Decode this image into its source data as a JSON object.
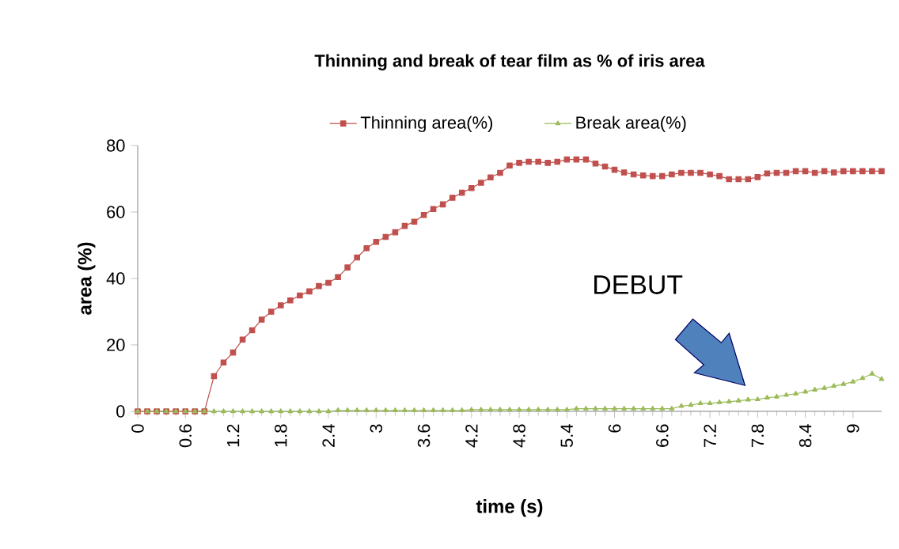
{
  "chart_data": {
    "type": "line",
    "title": "Thinning and break of tear film as % of iris area",
    "xlabel": "time (s)",
    "ylabel": "area (%)",
    "x": [
      0,
      0.12,
      0.24,
      0.36,
      0.48,
      0.6,
      0.72,
      0.84,
      0.96,
      1.08,
      1.2,
      1.32,
      1.44,
      1.56,
      1.68,
      1.8,
      1.92,
      2.04,
      2.16,
      2.28,
      2.4,
      2.52,
      2.64,
      2.76,
      2.88,
      3,
      3.12,
      3.24,
      3.36,
      3.48,
      3.6,
      3.72,
      3.84,
      3.96,
      4.08,
      4.2,
      4.32,
      4.44,
      4.56,
      4.68,
      4.8,
      4.92,
      5.04,
      5.16,
      5.28,
      5.4,
      5.52,
      5.64,
      5.76,
      5.88,
      6,
      6.12,
      6.24,
      6.36,
      6.48,
      6.6,
      6.72,
      6.84,
      6.96,
      7.08,
      7.2,
      7.32,
      7.44,
      7.56,
      7.68,
      7.8,
      7.92,
      8.04,
      8.16,
      8.28,
      8.4,
      8.52,
      8.64,
      8.76,
      8.88,
      9,
      9.12,
      9.24,
      9.36
    ],
    "series": [
      {
        "name": "Thinning area(%)",
        "color": "#c0504d",
        "marker": "square",
        "values": [
          0,
          0,
          0,
          0,
          0,
          0,
          0,
          0,
          10.6,
          14.7,
          17.7,
          21.6,
          24.4,
          27.6,
          30.0,
          31.9,
          33.4,
          34.9,
          36.1,
          37.7,
          38.7,
          40.4,
          43.3,
          46.3,
          49.1,
          51.0,
          52.5,
          53.9,
          55.8,
          57.1,
          59.1,
          60.9,
          62.3,
          64.3,
          65.8,
          67.2,
          68.8,
          70.4,
          71.8,
          74.0,
          74.8,
          75.1,
          75.1,
          74.8,
          75.1,
          75.8,
          75.8,
          75.8,
          74.6,
          73.7,
          72.7,
          71.9,
          71.3,
          71.0,
          70.8,
          70.8,
          71.3,
          71.8,
          71.8,
          71.8,
          71.3,
          70.8,
          69.9,
          69.9,
          69.9,
          70.5,
          71.6,
          71.8,
          71.8,
          72.3,
          72.3,
          71.8,
          72.3,
          71.9,
          72.3,
          72.3,
          72.3,
          72.3,
          72.3
        ]
      },
      {
        "name": "Break area(%)",
        "color": "#9bbb59",
        "marker": "triangle",
        "values": [
          0,
          0,
          0,
          0,
          0,
          0,
          0,
          0,
          0,
          0,
          0,
          0,
          0,
          0,
          0,
          0,
          0,
          0,
          0,
          0,
          0,
          0.3,
          0.3,
          0.3,
          0.3,
          0.3,
          0.3,
          0.3,
          0.3,
          0.3,
          0.3,
          0.3,
          0.3,
          0.3,
          0.3,
          0.5,
          0.5,
          0.5,
          0.5,
          0.5,
          0.5,
          0.5,
          0.5,
          0.5,
          0.5,
          0.5,
          0.8,
          0.8,
          0.8,
          0.8,
          0.8,
          0.8,
          0.8,
          0.8,
          0.8,
          0.8,
          0.8,
          1.6,
          1.9,
          2.4,
          2.4,
          2.7,
          2.9,
          3.2,
          3.5,
          3.6,
          4.1,
          4.4,
          4.9,
          5.3,
          5.9,
          6.5,
          7.0,
          7.6,
          8.2,
          8.9,
          10.0,
          11.3,
          9.7
        ]
      }
    ],
    "xlim": [
      0,
      9.36
    ],
    "xticks": [
      0,
      0.6,
      1.2,
      1.8,
      2.4,
      3,
      3.6,
      4.2,
      4.8,
      5.4,
      6,
      6.6,
      7.2,
      7.8,
      8.4,
      9
    ],
    "ylim": [
      0,
      80
    ],
    "yticks": [
      0,
      20,
      40,
      60,
      80
    ],
    "grid": false,
    "legend": "top",
    "annotations": [
      "DEBUT"
    ]
  }
}
